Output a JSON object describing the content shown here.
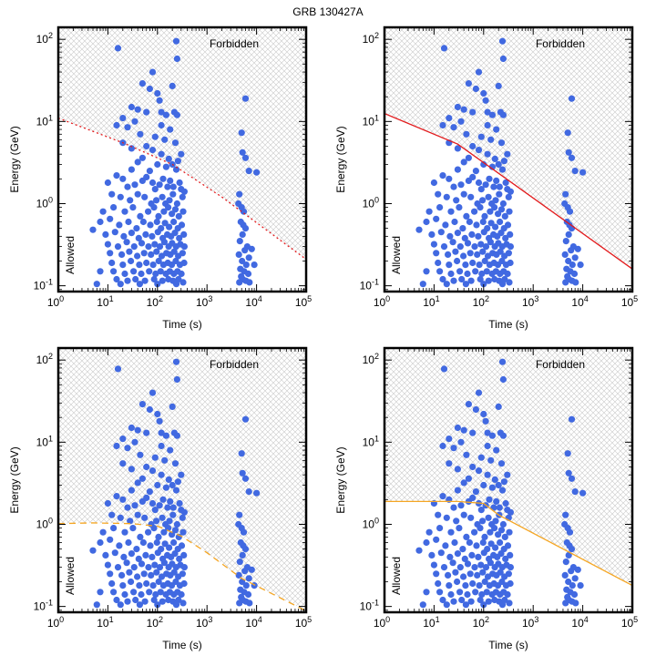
{
  "figure": {
    "title": "GRB 130427A"
  },
  "chart_data": [
    {
      "type": "scatter",
      "xlabel": "Time (s)",
      "ylabel": "Energy (GeV)",
      "xscale": "log",
      "yscale": "log",
      "xlim": [
        1,
        100000
      ],
      "ylim": [
        0.085,
        140
      ],
      "xtick_labels": [
        "10^0",
        "10^1",
        "10^2",
        "10^3",
        "10^4",
        "10^5"
      ],
      "ytick_labels": [
        "10^-1",
        "10^0",
        "10^1",
        "10^2"
      ],
      "region_labels": {
        "forbidden": "Forbidden",
        "allowed": "Allowed"
      },
      "grid": false,
      "series": [
        {
          "kind": "scatter",
          "color": "#4169e1"
        },
        {
          "kind": "boundary",
          "color": "#e31a1c",
          "style": "dotted",
          "x": [
            1,
            20,
            200,
            2000,
            100000
          ],
          "y": [
            11,
            5.5,
            3.0,
            1.2,
            0.21
          ]
        }
      ]
    },
    {
      "type": "scatter",
      "xlabel": "Time (s)",
      "ylabel": "Energy (GeV)",
      "xscale": "log",
      "yscale": "log",
      "xlim": [
        1,
        100000
      ],
      "ylim": [
        0.085,
        140
      ],
      "xtick_labels": [
        "10^0",
        "10^1",
        "10^2",
        "10^3",
        "10^4",
        "10^5"
      ],
      "ytick_labels": [
        "10^-1",
        "10^0",
        "10^1",
        "10^2"
      ],
      "region_labels": {
        "forbidden": "Forbidden",
        "allowed": "Allowed"
      },
      "grid": false,
      "series": [
        {
          "kind": "scatter",
          "color": "#4169e1"
        },
        {
          "kind": "boundary",
          "color": "#e31a1c",
          "style": "solid",
          "x": [
            1,
            30,
            100000
          ],
          "y": [
            12.5,
            5.3,
            0.16
          ]
        }
      ]
    },
    {
      "type": "scatter",
      "xlabel": "Time (s)",
      "ylabel": "Energy (GeV)",
      "xscale": "log",
      "yscale": "log",
      "xlim": [
        1,
        100000
      ],
      "ylim": [
        0.085,
        140
      ],
      "xtick_labels": [
        "10^0",
        "10^1",
        "10^2",
        "10^3",
        "10^4",
        "10^5"
      ],
      "ytick_labels": [
        "10^-1",
        "10^0",
        "10^1",
        "10^2"
      ],
      "region_labels": {
        "forbidden": "Forbidden",
        "allowed": "Allowed"
      },
      "grid": false,
      "series": [
        {
          "kind": "scatter",
          "color": "#4169e1"
        },
        {
          "kind": "boundary",
          "color": "#f5a623",
          "style": "dashed",
          "x": [
            1,
            5,
            30,
            100,
            300,
            1000,
            5000,
            100000
          ],
          "y": [
            1.02,
            1.04,
            1.02,
            0.95,
            0.72,
            0.45,
            0.22,
            0.088
          ]
        }
      ]
    },
    {
      "type": "scatter",
      "xlabel": "Time (s)",
      "ylabel": "Energy (GeV)",
      "xscale": "log",
      "yscale": "log",
      "xlim": [
        1,
        100000
      ],
      "ylim": [
        0.085,
        140
      ],
      "xtick_labels": [
        "10^0",
        "10^1",
        "10^2",
        "10^3",
        "10^4",
        "10^5"
      ],
      "ytick_labels": [
        "10^-1",
        "10^0",
        "10^1",
        "10^2"
      ],
      "region_labels": {
        "forbidden": "Forbidden",
        "allowed": "Allowed"
      },
      "grid": false,
      "series": [
        {
          "kind": "scatter",
          "color": "#4169e1"
        },
        {
          "kind": "boundary",
          "color": "#f5a623",
          "style": "solid",
          "x": [
            1,
            30,
            100,
            200,
            100000
          ],
          "y": [
            1.9,
            1.9,
            1.8,
            1.3,
            0.18
          ]
        }
      ]
    }
  ],
  "scatter_points": [
    [
      16,
      78
    ],
    [
      240,
      95
    ],
    [
      250,
      58
    ],
    [
      80,
      40
    ],
    [
      50,
      29
    ],
    [
      70,
      25
    ],
    [
      110,
      18
    ],
    [
      200,
      27
    ],
    [
      100,
      22
    ],
    [
      30,
      15
    ],
    [
      40,
      14
    ],
    [
      60,
      13
    ],
    [
      120,
      13
    ],
    [
      150,
      12
    ],
    [
      220,
      13
    ],
    [
      250,
      12
    ],
    [
      20,
      11
    ],
    [
      35,
      10
    ],
    [
      15,
      9
    ],
    [
      25,
      8.5
    ],
    [
      120,
      9
    ],
    [
      180,
      8
    ],
    [
      45,
      7
    ],
    [
      90,
      6.5
    ],
    [
      140,
      6
    ],
    [
      20,
      5.5
    ],
    [
      60,
      5
    ],
    [
      230,
      5.5
    ],
    [
      30,
      4.7
    ],
    [
      80,
      4.5
    ],
    [
      120,
      4
    ],
    [
      300,
      4
    ],
    [
      50,
      3.6
    ],
    [
      170,
      3.5
    ],
    [
      260,
      3.3
    ],
    [
      40,
      3.2
    ],
    [
      100,
      3.0
    ],
    [
      150,
      2.8
    ],
    [
      200,
      3
    ],
    [
      30,
      2.6
    ],
    [
      70,
      2.5
    ],
    [
      240,
      2.6
    ],
    [
      5000,
      7.3
    ],
    [
      5200,
      4.2
    ],
    [
      6000,
      3.6
    ],
    [
      7000,
      2.5
    ],
    [
      10000,
      2.4
    ],
    [
      6000,
      19
    ],
    [
      10,
      1.8
    ],
    [
      15,
      2.2
    ],
    [
      20,
      2.0
    ],
    [
      25,
      1.6
    ],
    [
      35,
      1.7
    ],
    [
      50,
      1.9
    ],
    [
      60,
      2.1
    ],
    [
      80,
      1.8
    ],
    [
      90,
      1.5
    ],
    [
      110,
      1.7
    ],
    [
      130,
      2.0
    ],
    [
      160,
      1.6
    ],
    [
      180,
      1.9
    ],
    [
      210,
      1.6
    ],
    [
      280,
      1.8
    ],
    [
      300,
      1.5
    ],
    [
      350,
      1.4
    ],
    [
      12,
      1.3
    ],
    [
      18,
      1.2
    ],
    [
      28,
      1.1
    ],
    [
      40,
      1.3
    ],
    [
      55,
      1.2
    ],
    [
      75,
      1.0
    ],
    [
      95,
      1.1
    ],
    [
      125,
      1.2
    ],
    [
      145,
      1.0
    ],
    [
      175,
      1.1
    ],
    [
      205,
      1.3
    ],
    [
      250,
      1.0
    ],
    [
      320,
      1.2
    ],
    [
      8,
      0.8
    ],
    [
      13,
      0.9
    ],
    [
      22,
      0.8
    ],
    [
      32,
      0.9
    ],
    [
      45,
      0.7
    ],
    [
      65,
      0.8
    ],
    [
      85,
      0.9
    ],
    [
      105,
      0.7
    ],
    [
      135,
      0.8
    ],
    [
      165,
      0.9
    ],
    [
      195,
      0.75
    ],
    [
      230,
      0.85
    ],
    [
      270,
      0.7
    ],
    [
      330,
      0.8
    ],
    [
      7,
      0.6
    ],
    [
      11,
      0.65
    ],
    [
      17,
      0.55
    ],
    [
      26,
      0.6
    ],
    [
      38,
      0.5
    ],
    [
      52,
      0.6
    ],
    [
      72,
      0.55
    ],
    [
      98,
      0.6
    ],
    [
      118,
      0.5
    ],
    [
      142,
      0.58
    ],
    [
      172,
      0.52
    ],
    [
      212,
      0.6
    ],
    [
      258,
      0.5
    ],
    [
      310,
      0.55
    ],
    [
      9,
      0.42
    ],
    [
      14,
      0.45
    ],
    [
      21,
      0.4
    ],
    [
      30,
      0.44
    ],
    [
      42,
      0.38
    ],
    [
      58,
      0.42
    ],
    [
      78,
      0.4
    ],
    [
      102,
      0.45
    ],
    [
      128,
      0.38
    ],
    [
      158,
      0.42
    ],
    [
      188,
      0.4
    ],
    [
      225,
      0.44
    ],
    [
      275,
      0.38
    ],
    [
      340,
      0.42
    ],
    [
      10,
      0.32
    ],
    [
      16,
      0.3
    ],
    [
      24,
      0.34
    ],
    [
      34,
      0.3
    ],
    [
      48,
      0.33
    ],
    [
      66,
      0.3
    ],
    [
      88,
      0.32
    ],
    [
      112,
      0.3
    ],
    [
      138,
      0.34
    ],
    [
      168,
      0.3
    ],
    [
      198,
      0.33
    ],
    [
      238,
      0.3
    ],
    [
      290,
      0.32
    ],
    [
      350,
      0.3
    ],
    [
      11,
      0.25
    ],
    [
      19,
      0.24
    ],
    [
      27,
      0.26
    ],
    [
      39,
      0.23
    ],
    [
      54,
      0.25
    ],
    [
      74,
      0.24
    ],
    [
      96,
      0.26
    ],
    [
      122,
      0.23
    ],
    [
      152,
      0.25
    ],
    [
      182,
      0.24
    ],
    [
      218,
      0.26
    ],
    [
      262,
      0.23
    ],
    [
      322,
      0.25
    ],
    [
      12,
      0.19
    ],
    [
      20,
      0.18
    ],
    [
      29,
      0.2
    ],
    [
      43,
      0.18
    ],
    [
      60,
      0.19
    ],
    [
      82,
      0.18
    ],
    [
      106,
      0.2
    ],
    [
      132,
      0.18
    ],
    [
      162,
      0.19
    ],
    [
      194,
      0.18
    ],
    [
      234,
      0.2
    ],
    [
      284,
      0.18
    ],
    [
      345,
      0.19
    ],
    [
      13,
      0.15
    ],
    [
      22,
      0.14
    ],
    [
      33,
      0.15
    ],
    [
      47,
      0.14
    ],
    [
      68,
      0.15
    ],
    [
      92,
      0.14
    ],
    [
      116,
      0.15
    ],
    [
      148,
      0.14
    ],
    [
      178,
      0.15
    ],
    [
      214,
      0.14
    ],
    [
      254,
      0.15
    ],
    [
      305,
      0.14
    ],
    [
      15,
      0.12
    ],
    [
      25,
      0.115
    ],
    [
      36,
      0.12
    ],
    [
      56,
      0.115
    ],
    [
      86,
      0.12
    ],
    [
      126,
      0.115
    ],
    [
      166,
      0.12
    ],
    [
      206,
      0.115
    ],
    [
      266,
      0.12
    ],
    [
      6,
      0.105
    ],
    [
      18,
      0.105
    ],
    [
      44,
      0.105
    ],
    [
      100,
      0.105
    ],
    [
      240,
      0.105
    ],
    [
      330,
      0.11
    ],
    [
      5,
      0.48
    ],
    [
      7,
      0.15
    ],
    [
      4500,
      1.3
    ],
    [
      5000,
      0.9
    ],
    [
      5500,
      0.8
    ],
    [
      4800,
      0.6
    ],
    [
      6000,
      0.5
    ],
    [
      5200,
      0.42
    ],
    [
      4600,
      0.35
    ],
    [
      6500,
      0.3
    ],
    [
      5800,
      0.27
    ],
    [
      4400,
      0.24
    ],
    [
      7000,
      0.22
    ],
    [
      5100,
      0.2
    ],
    [
      6200,
      0.18
    ],
    [
      4700,
      0.16
    ],
    [
      5600,
      0.15
    ],
    [
      6800,
      0.14
    ],
    [
      4900,
      0.13
    ],
    [
      5300,
      0.12
    ],
    [
      6100,
      0.115
    ],
    [
      4500,
      0.11
    ],
    [
      7200,
      0.11
    ],
    [
      8000,
      0.28
    ],
    [
      9000,
      0.18
    ],
    [
      5400,
      0.55
    ],
    [
      4300,
      1.0
    ]
  ]
}
